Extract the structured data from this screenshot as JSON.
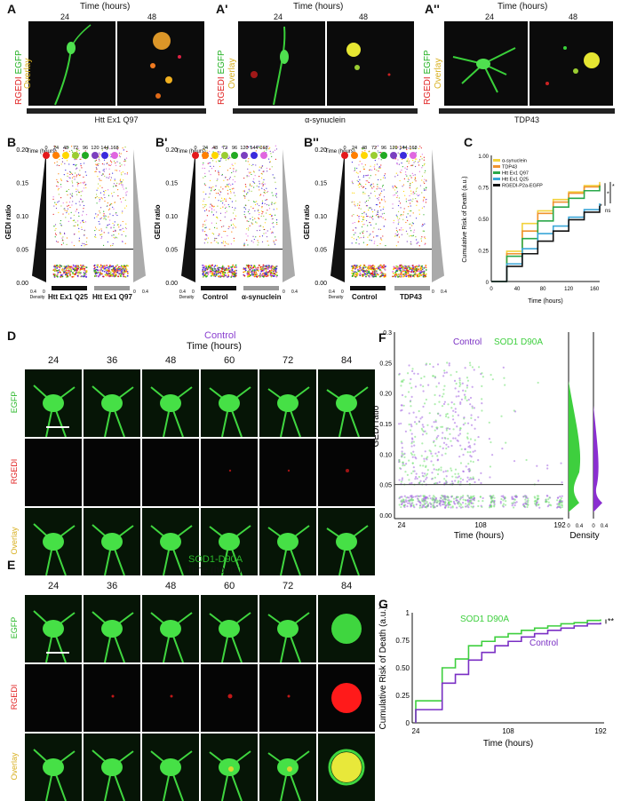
{
  "panels": {
    "A": {
      "label": "A",
      "time_header": "Time (hours)",
      "t1": "24",
      "t2": "48",
      "caption": "Htt Ex1 Q97"
    },
    "A1": {
      "label": "A'",
      "time_header": "Time (hours)",
      "t1": "24",
      "t2": "48",
      "caption": "α-synuclein"
    },
    "A2": {
      "label": "A''",
      "time_header": "Time (hours)",
      "t1": "24",
      "t2": "48",
      "caption": "TDP43"
    },
    "channel_labels": {
      "red": "RGEDI",
      "green": "EGFP",
      "overlay": "Overlay"
    },
    "B": {
      "label": "B",
      "group1": "Htt Ex1 Q25",
      "group2": "Htt Ex1 Q97"
    },
    "B1": {
      "label": "B'",
      "group1": "Control",
      "group2": "α-synuclein"
    },
    "B2": {
      "label": "B''",
      "group1": "Control",
      "group2": "TDP43"
    },
    "B_common": {
      "ylabel": "GEDI ratio",
      "yticks": [
        "0.00",
        "0.05",
        "0.10",
        "0.15",
        "0.20"
      ],
      "time_legend_title": "Time (hours)",
      "time_points": [
        "0",
        "24",
        "48",
        "72",
        "96",
        "120",
        "144",
        "168"
      ],
      "time_colors": [
        "#e41a1c",
        "#ff7f00",
        "#ffd700",
        "#9acd32",
        "#22aa22",
        "#7b3fbf",
        "#3b2bdc",
        "#e066e0"
      ],
      "density_label": "Density",
      "density_ticks": [
        "0.4",
        "0",
        "0",
        "0.4"
      ],
      "threshold": 0.05
    },
    "C": {
      "label": "C",
      "ylabel": "Cumulative Risk of Death (a.u.)",
      "xlabel": "Time (hours)",
      "yticks": [
        "0",
        "0.25",
        "0.50",
        "0.75",
        "1.00"
      ],
      "xticks": [
        "0",
        "40",
        "80",
        "120",
        "160"
      ],
      "sig": [
        "*",
        "*",
        "*",
        "ns"
      ]
    },
    "D": {
      "label": "D",
      "condition": "Control",
      "time_header": "Time (hours)",
      "times": [
        "24",
        "36",
        "48",
        "60",
        "72",
        "84"
      ]
    },
    "E": {
      "label": "E",
      "condition": "SOD1-D90A",
      "time_header": "Time (hours)",
      "times": [
        "24",
        "36",
        "48",
        "60",
        "72",
        "84"
      ]
    },
    "F": {
      "label": "F",
      "legend_control": "Control",
      "legend_mut": "SOD1 D90A",
      "ylabel": "GEDI ratio",
      "xlabel": "Time (hours)",
      "density_label": "Density",
      "yticks": [
        "0.00",
        "0.05",
        "0.10",
        "0.15",
        "0.20",
        "0.25",
        "0.3"
      ],
      "xticks": [
        "24",
        "108",
        "192"
      ],
      "density_ticks": [
        "0",
        "0.4",
        "0",
        "0.4"
      ]
    },
    "G": {
      "label": "G",
      "ylabel": "Cumulative Risk of Death (a.u.)",
      "xlabel": "Time (hours)",
      "yticks": [
        "0",
        "0.25",
        "0.50",
        "0.75",
        "1"
      ],
      "xticks": [
        "24",
        "108",
        "192"
      ],
      "label_mut": "SOD1 D90A",
      "label_control": "Control",
      "sig": "**"
    }
  },
  "chart_data": [
    {
      "type": "line",
      "panel": "C",
      "xlabel": "Time (hours)",
      "ylabel": "Cumulative Risk of Death (a.u.)",
      "xlim": [
        0,
        168
      ],
      "ylim": [
        0,
        1
      ],
      "x": [
        0,
        24,
        48,
        72,
        96,
        120,
        144,
        168
      ],
      "series": [
        {
          "name": "α-synuclein",
          "color": "#f2d23c",
          "values": [
            0.0,
            0.24,
            0.46,
            0.56,
            0.65,
            0.71,
            0.76,
            0.79
          ]
        },
        {
          "name": "TDP43",
          "color": "#f0922e",
          "values": [
            0.0,
            0.22,
            0.4,
            0.54,
            0.63,
            0.7,
            0.75,
            0.77
          ]
        },
        {
          "name": "Htt Ex1 Q97",
          "color": "#2aa84a",
          "values": [
            0.0,
            0.2,
            0.34,
            0.48,
            0.59,
            0.66,
            0.72,
            0.76
          ]
        },
        {
          "name": "Htt Ex1 Q25",
          "color": "#3aa6d8",
          "values": [
            0.0,
            0.14,
            0.26,
            0.38,
            0.44,
            0.51,
            0.57,
            0.62
          ]
        },
        {
          "name": "RGEDI-P2a-EGFP",
          "color": "#111111",
          "values": [
            0.0,
            0.12,
            0.22,
            0.32,
            0.4,
            0.49,
            0.55,
            0.6
          ]
        }
      ]
    },
    {
      "type": "line",
      "panel": "G",
      "xlabel": "Time (hours)",
      "ylabel": "Cumulative Risk of Death (a.u.)",
      "xlim": [
        24,
        192
      ],
      "ylim": [
        0,
        1
      ],
      "x": [
        24,
        36,
        48,
        60,
        72,
        84,
        96,
        108,
        120,
        132,
        144,
        156,
        168,
        180,
        192
      ],
      "series": [
        {
          "name": "SOD1 D90A",
          "color": "#3ecf3e",
          "values": [
            0.2,
            0.2,
            0.5,
            0.58,
            0.7,
            0.74,
            0.78,
            0.81,
            0.84,
            0.86,
            0.88,
            0.9,
            0.91,
            0.93,
            0.94
          ]
        },
        {
          "name": "Control",
          "color": "#7a2fc4",
          "values": [
            0.12,
            0.12,
            0.36,
            0.44,
            0.57,
            0.64,
            0.7,
            0.74,
            0.78,
            0.81,
            0.84,
            0.86,
            0.88,
            0.9,
            0.91
          ]
        }
      ]
    }
  ]
}
